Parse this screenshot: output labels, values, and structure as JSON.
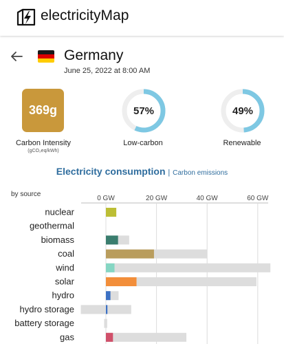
{
  "app": {
    "name": "electricityMap"
  },
  "zone": {
    "name": "Germany",
    "datetime": "June 25, 2022 at 8:00 AM"
  },
  "metrics": {
    "carbon_intensity": {
      "value": "369g",
      "label": "Carbon Intensity",
      "unit": "(gCO₂eq/kWh)",
      "color": "#c9983b"
    },
    "low_carbon": {
      "value": "57%",
      "fraction": 0.57,
      "label": "Low-carbon"
    },
    "renewable": {
      "value": "49%",
      "fraction": 0.49,
      "label": "Renewable"
    },
    "ring_color": "#7ec8e3",
    "ring_track_color": "#eeeeee"
  },
  "tabs": {
    "active": "Electricity consumption",
    "separator": "|",
    "inactive": "Carbon emissions"
  },
  "chart_label": "by source",
  "chart_data": {
    "type": "bar",
    "orientation": "horizontal",
    "xunit": "GW",
    "xlim": [
      -10,
      65
    ],
    "xticks": [
      {
        "value": 0,
        "label": "0 GW"
      },
      {
        "value": 20,
        "label": "20 GW"
      },
      {
        "value": 40,
        "label": "40 GW"
      },
      {
        "value": 60,
        "label": "60 GW"
      }
    ],
    "grid": true,
    "categories": [
      "nuclear",
      "geothermal",
      "biomass",
      "coal",
      "wind",
      "solar",
      "hydro",
      "hydro storage",
      "battery storage",
      "gas"
    ],
    "production": [
      4.1,
      0,
      4.8,
      19.0,
      3.4,
      12.1,
      1.8,
      0.6,
      0,
      2.8
    ],
    "capacity": [
      4.1,
      0,
      9.2,
      40.0,
      65.0,
      59.5,
      5.0,
      10.0,
      0.5,
      31.8
    ],
    "storage_charging": [
      0,
      0,
      0,
      0,
      0,
      0,
      0,
      -9.9,
      -0.7,
      0
    ],
    "colors": [
      "#bcbe35",
      "#b5282a",
      "#3a7d6e",
      "#b99d5d",
      "#85d6c3",
      "#f28e3a",
      "#3c71c4",
      "#3c71c4",
      "#b1cfe0",
      "#d0506a"
    ],
    "capacity_color": "#dddddd"
  }
}
